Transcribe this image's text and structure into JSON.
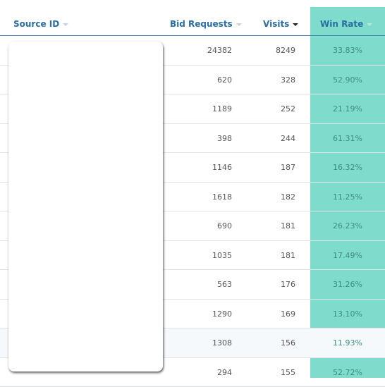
{
  "headers": {
    "source_id": "Source ID",
    "bid_requests": "Bid Requests",
    "visits": "Visits",
    "win_rate": "Win Rate"
  },
  "sort": {
    "column": "visits",
    "direction": "desc"
  },
  "accent_color": "#7fdbcb",
  "rows": [
    {
      "bid_requests": "24382",
      "visits": "8249",
      "win_rate": "33.83%"
    },
    {
      "bid_requests": "620",
      "visits": "328",
      "win_rate": "52.90%"
    },
    {
      "bid_requests": "1189",
      "visits": "252",
      "win_rate": "21.19%"
    },
    {
      "bid_requests": "398",
      "visits": "244",
      "win_rate": "61.31%"
    },
    {
      "bid_requests": "1146",
      "visits": "187",
      "win_rate": "16.32%"
    },
    {
      "bid_requests": "1618",
      "visits": "182",
      "win_rate": "11.25%"
    },
    {
      "bid_requests": "690",
      "visits": "181",
      "win_rate": "26.23%"
    },
    {
      "bid_requests": "1035",
      "visits": "181",
      "win_rate": "17.49%"
    },
    {
      "bid_requests": "563",
      "visits": "176",
      "win_rate": "31.26%"
    },
    {
      "bid_requests": "1290",
      "visits": "169",
      "win_rate": "13.10%"
    },
    {
      "bid_requests": "1308",
      "visits": "156",
      "win_rate": "11.93%"
    },
    {
      "bid_requests": "294",
      "visits": "155",
      "win_rate": "52.72%"
    }
  ]
}
